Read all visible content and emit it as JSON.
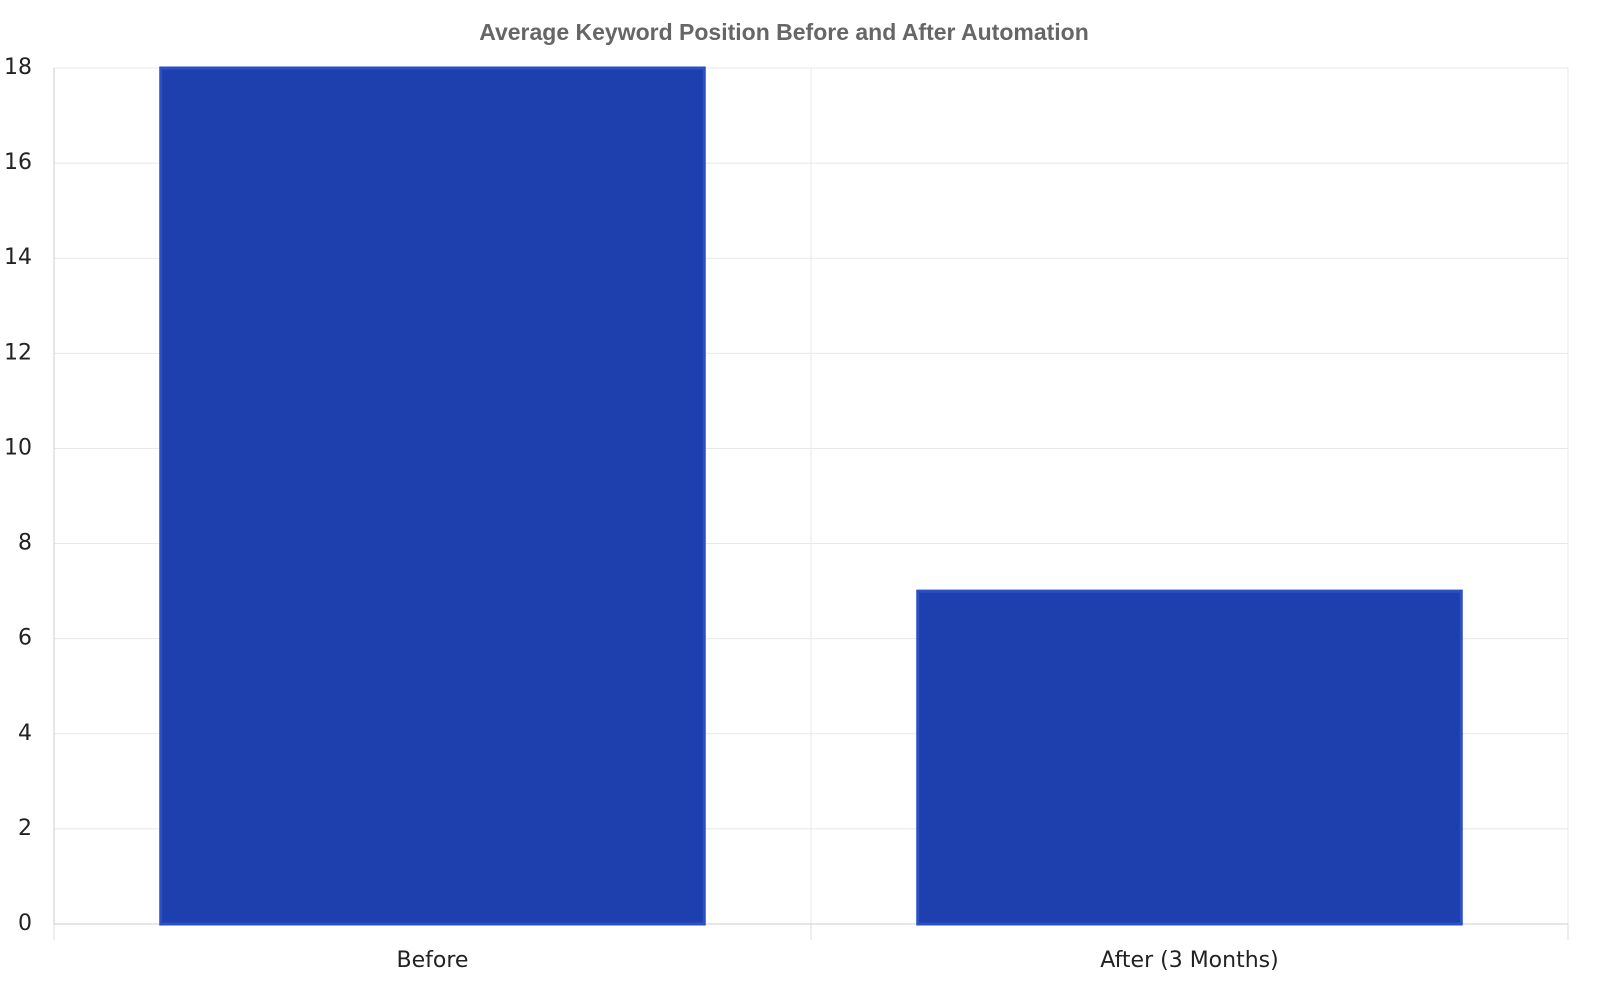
{
  "chart_data": {
    "type": "bar",
    "title": "Average Keyword Position Before and After Automation",
    "categories": [
      "Before",
      "After (3 Months)"
    ],
    "values": [
      18,
      7
    ],
    "color": "#1e40af",
    "ylim": [
      0,
      18
    ],
    "yticks": [
      0,
      2,
      4,
      6,
      8,
      10,
      12,
      14,
      16,
      18
    ],
    "grid": true
  }
}
